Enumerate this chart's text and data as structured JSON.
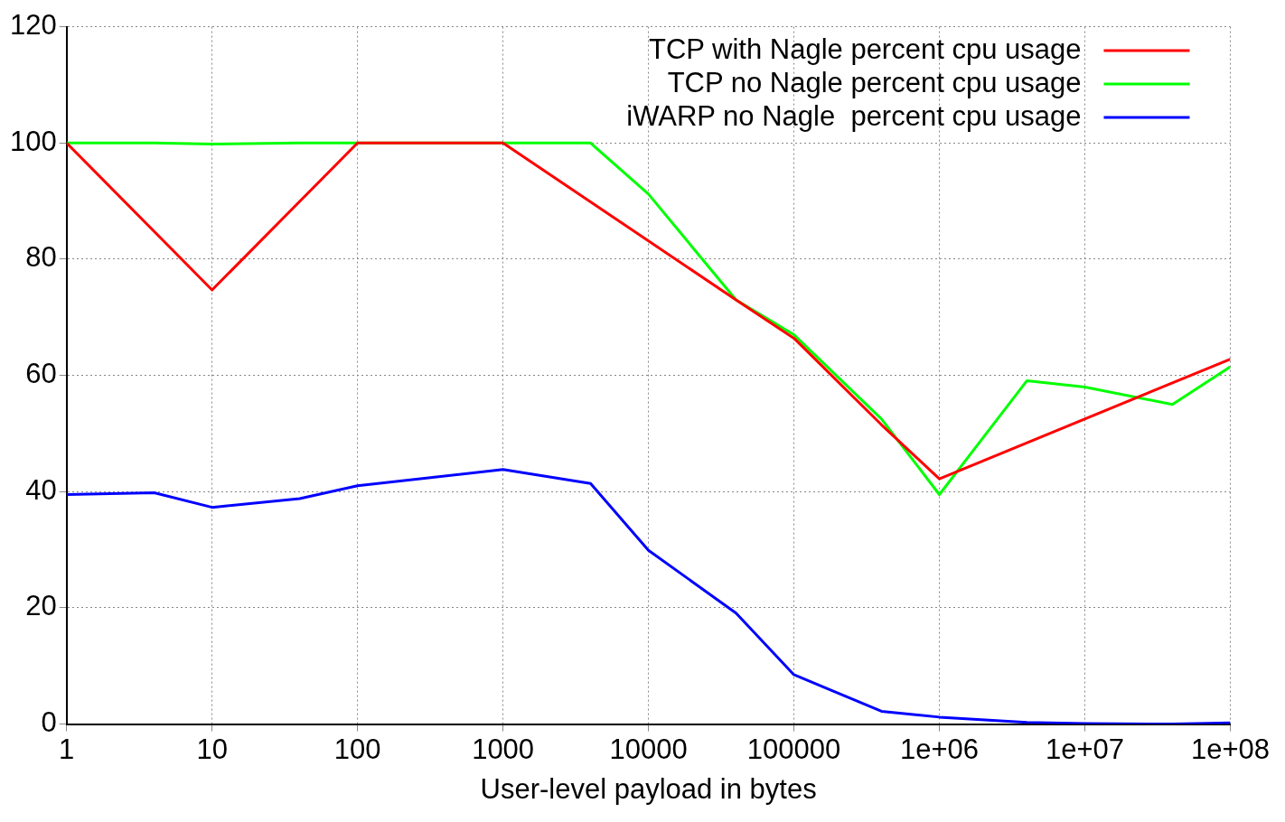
{
  "chart_data": {
    "type": "line",
    "xlabel": "User-level payload in bytes",
    "log": "x",
    "xlim": [
      1,
      100000000
    ],
    "xticks": [
      1,
      10,
      100,
      1000,
      10000,
      100000,
      {
        "value": 1000000,
        "label": "1e+06"
      },
      {
        "value": 10000000,
        "label": "1e+07"
      },
      {
        "value": 100000000,
        "label": "1e+08"
      }
    ],
    "ylim": [
      0,
      120
    ],
    "yticks": [
      0,
      20,
      40,
      60,
      80,
      100,
      120
    ],
    "grid": true,
    "legend": "top right",
    "marker": "none",
    "line_style": "solid",
    "series": [
      {
        "name": "TCP with Nagle percent cpu usage",
        "color": "#ff0000",
        "x": [
          1,
          10,
          100,
          1000,
          40000,
          100000,
          400000,
          1000000,
          100000000
        ],
        "values": [
          100,
          74.7,
          100,
          100,
          73,
          66.4,
          51.5,
          42.2,
          62.8
        ]
      },
      {
        "name": "TCP no Nagle percent cpu usage",
        "color": "#00ff00",
        "x": [
          1,
          4,
          10,
          40,
          100,
          1000,
          4000,
          10000,
          40000,
          100000,
          400000,
          1000000,
          4000000,
          10000000,
          40000000,
          100000000
        ],
        "values": [
          100,
          100,
          99.8,
          100,
          100,
          100,
          100,
          91.2,
          73,
          67,
          52.5,
          39.5,
          59.1,
          58,
          55,
          61.5
        ]
      },
      {
        "name": "iWARP no Nagle  percent cpu usage",
        "color": "#0000ff",
        "x": [
          1,
          4,
          10,
          40,
          100,
          1000,
          4000,
          10000,
          40000,
          100000,
          400000,
          1000000,
          4000000,
          10000000,
          40000000,
          100000000
        ],
        "values": [
          39.5,
          39.8,
          37.3,
          38.8,
          41,
          43.8,
          41.4,
          29.9,
          19.1,
          8.5,
          2.2,
          1.2,
          0.3,
          0.1,
          0,
          0.2
        ]
      }
    ]
  }
}
